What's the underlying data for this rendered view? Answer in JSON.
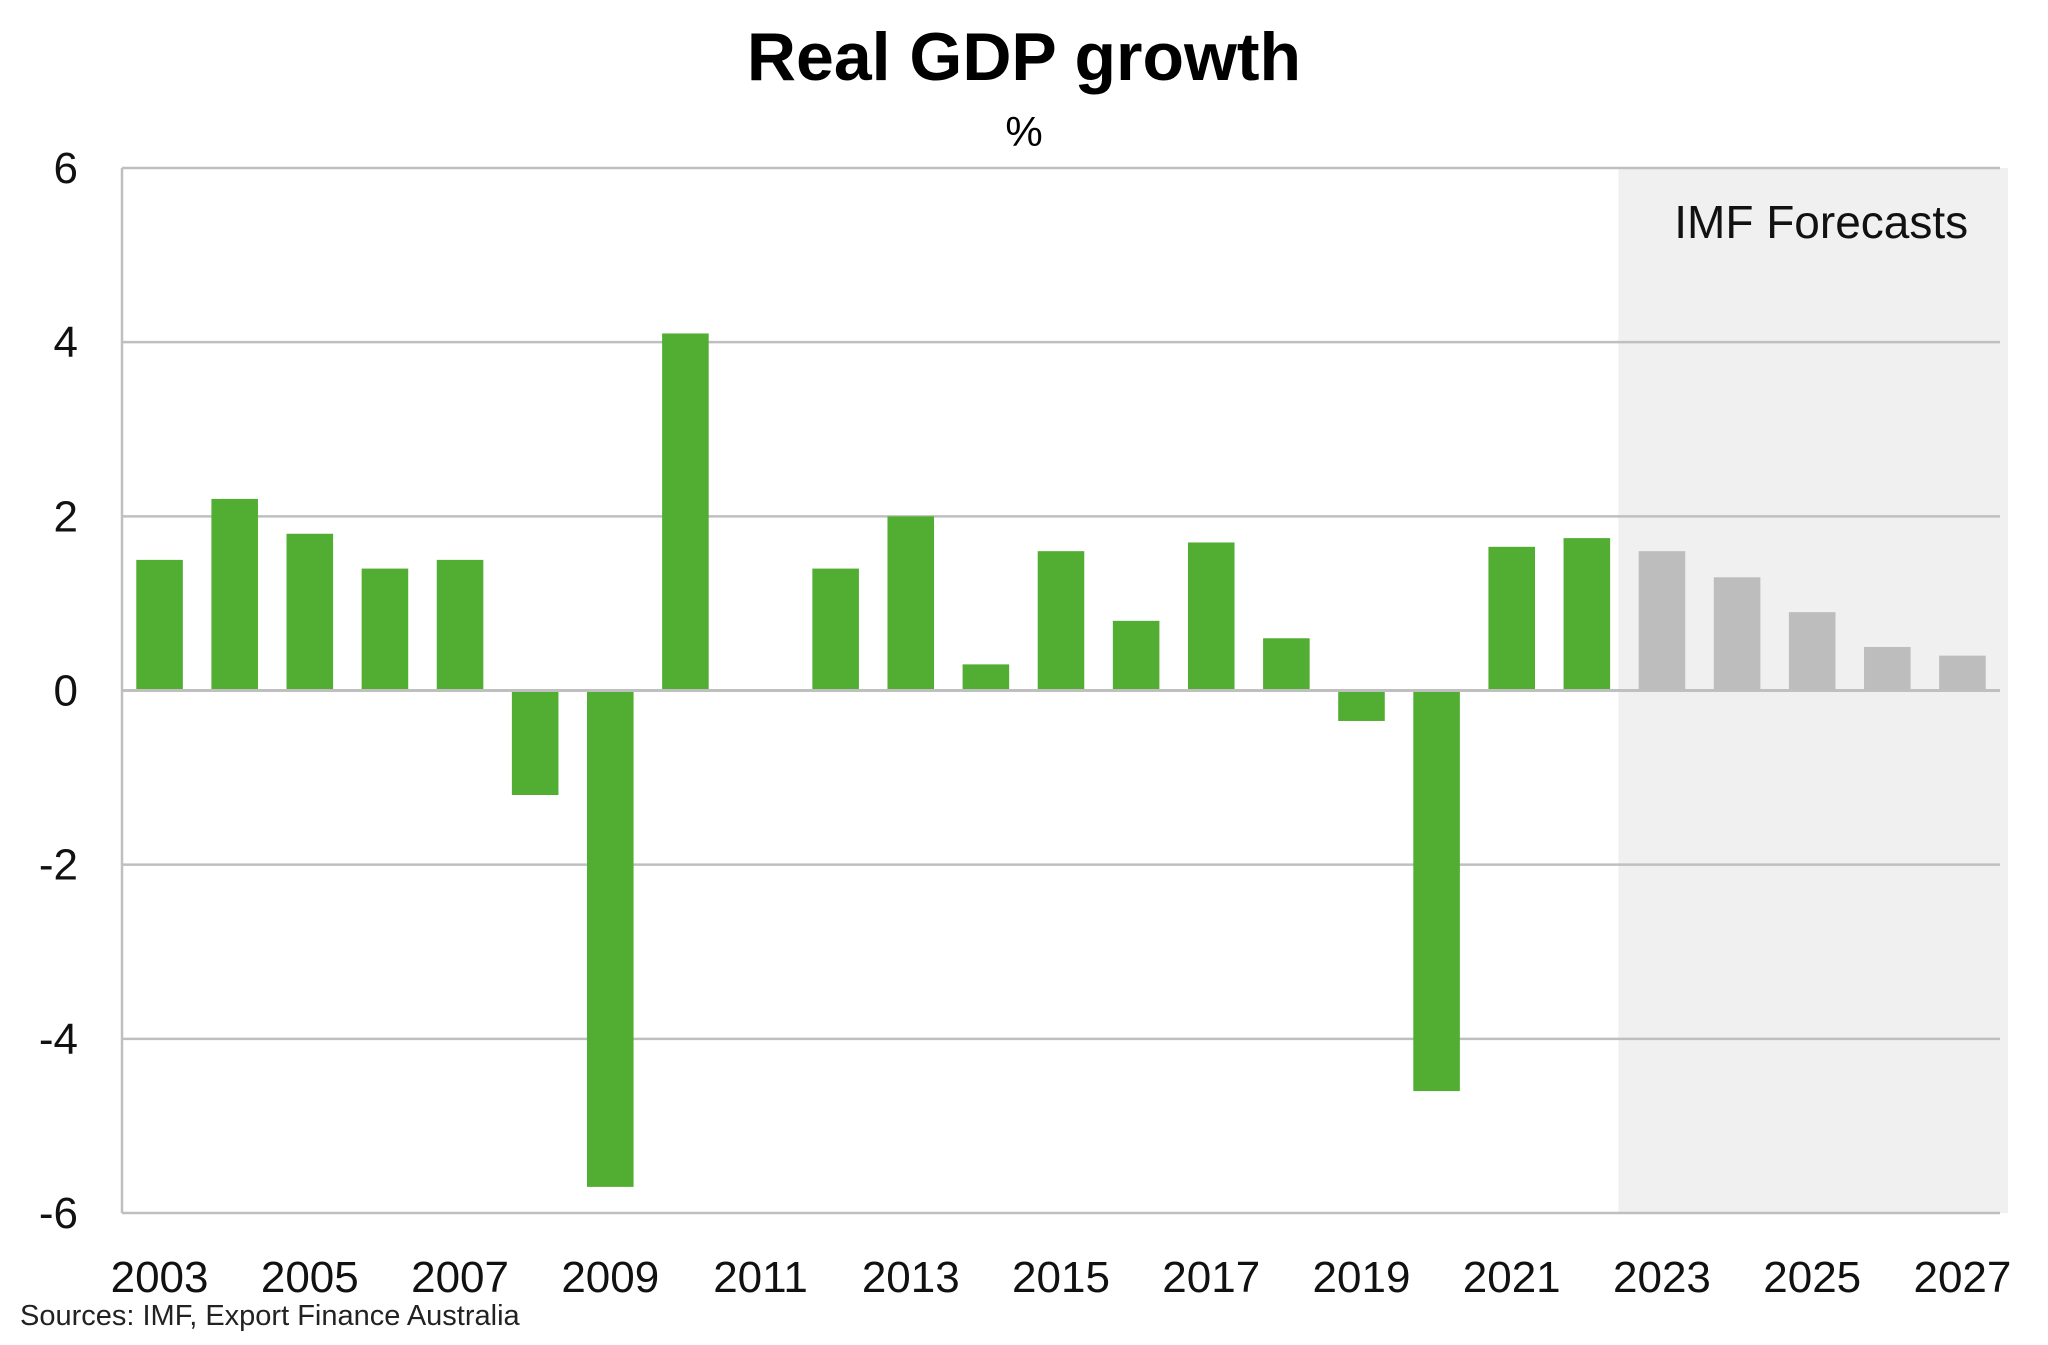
{
  "chart_data": {
    "type": "bar",
    "title": "Real GDP growth",
    "subtitle": "%",
    "xlabel": "",
    "ylabel": "",
    "ylim": [
      -6,
      6
    ],
    "yticks": [
      6,
      4,
      2,
      0,
      -2,
      -4,
      -6
    ],
    "ytick_labels": [
      "6",
      "4",
      "2",
      "0",
      "-2",
      "-4",
      "-6"
    ],
    "categories": [
      "2003",
      "2004",
      "2005",
      "2006",
      "2007",
      "2008",
      "2009",
      "2010",
      "2011",
      "2012",
      "2013",
      "2014",
      "2015",
      "2016",
      "2017",
      "2018",
      "2019",
      "2020",
      "2021",
      "2022",
      "2023",
      "2024",
      "2025",
      "2026",
      "2027"
    ],
    "xtick_labels": [
      "2003",
      "2005",
      "2007",
      "2009",
      "2011",
      "2013",
      "2015",
      "2017",
      "2019",
      "2021",
      "2023",
      "2025",
      "2027"
    ],
    "series": [
      {
        "values": [
          1.5,
          2.2,
          1.8,
          1.4,
          1.5,
          -1.2,
          -5.7,
          4.1,
          0.0,
          1.4,
          2.0,
          0.3,
          1.6,
          0.8,
          1.7,
          0.6,
          -0.35,
          -4.6,
          1.65,
          1.75,
          1.6,
          1.3,
          0.9,
          0.5,
          0.4
        ],
        "forecast_from": "2023"
      }
    ],
    "forecast_label": "IMF Forecasts",
    "grid": true,
    "colors": {
      "actual": "#52ae32",
      "forecast": "#bdbdbd",
      "forecast_band": "#f0f0f0",
      "grid": "#bfbfbf"
    }
  },
  "source": "Sources: IMF, Export Finance Australia"
}
